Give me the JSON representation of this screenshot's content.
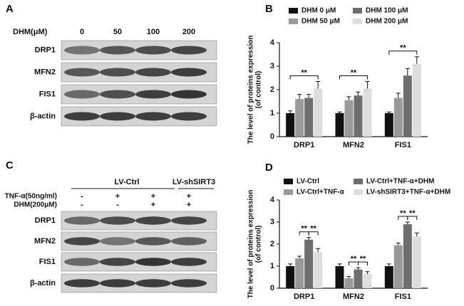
{
  "panels": {
    "A": {
      "letter": "A",
      "header": "DHM(μM)",
      "lanes": [
        "0",
        "50",
        "100",
        "200"
      ],
      "rows": [
        "DRP1",
        "MFN2",
        "FIS1",
        "β-actin"
      ]
    },
    "C": {
      "letter": "C",
      "groups": [
        "LV-Ctrl",
        "LV-shSIRT3"
      ],
      "conditions": [
        {
          "label": "TNF-α(50ng/ml)",
          "signs": [
            "-",
            "+",
            "+",
            "+"
          ]
        },
        {
          "label": "DHM(200μM)",
          "signs": [
            "-",
            "-",
            "+",
            "+"
          ]
        }
      ],
      "rows": [
        "DRP1",
        "MFN2",
        "FIS1",
        "β-actin"
      ]
    }
  },
  "chart_data": [
    {
      "type": "bar",
      "letter": "B",
      "ylabel": [
        "The level of proteins expression",
        "(of control)"
      ],
      "categories": [
        "DRP1",
        "MFN2",
        "FIS1"
      ],
      "ylim": [
        0,
        4
      ],
      "yticks": [
        0,
        1,
        2,
        3,
        4
      ],
      "series": [
        {
          "name": "DHM 0 μM",
          "color": "#111111",
          "values": [
            1.0,
            1.0,
            1.0
          ],
          "errors": [
            0.1,
            0.05,
            0.05
          ]
        },
        {
          "name": "DHM 50 μM",
          "color": "#999999",
          "values": [
            1.6,
            1.55,
            1.65
          ],
          "errors": [
            0.2,
            0.15,
            0.2
          ]
        },
        {
          "name": "DHM 100 μM",
          "color": "#6e6e6e",
          "values": [
            1.65,
            1.75,
            2.6
          ],
          "errors": [
            0.15,
            0.15,
            0.3
          ]
        },
        {
          "name": "DHM 200 μM",
          "color": "#dddddd",
          "values": [
            2.05,
            2.05,
            3.1
          ],
          "errors": [
            0.3,
            0.3,
            0.3
          ]
        }
      ],
      "annotations": [
        {
          "text": "**",
          "category": "DRP1",
          "from": "DHM 0 μM",
          "to": "DHM 200 μM"
        },
        {
          "text": "**",
          "category": "MFN2",
          "from": "DHM 0 μM",
          "to": "DHM 200 μM"
        },
        {
          "text": "**",
          "category": "FIS1",
          "from": "DHM 0 μM",
          "to": "DHM 200 μM"
        }
      ]
    },
    {
      "type": "bar",
      "letter": "D",
      "ylabel": [
        "The level of proteins expression",
        "(of control)"
      ],
      "categories": [
        "DRP1",
        "MFN2",
        "FIS1"
      ],
      "ylim": [
        0,
        4
      ],
      "yticks": [
        0,
        1,
        2,
        3,
        4
      ],
      "series": [
        {
          "name": "LV-Ctrl",
          "color": "#111111",
          "values": [
            1.0,
            1.0,
            1.0
          ],
          "errors": [
            0.1,
            0.1,
            0.1
          ]
        },
        {
          "name": "LV-Ctrl+TNF-α",
          "color": "#999999",
          "values": [
            1.35,
            0.45,
            1.95
          ],
          "errors": [
            0.1,
            0.08,
            0.1
          ]
        },
        {
          "name": "LV-Ctrl+TNF-α+DHM",
          "color": "#6e6e6e",
          "values": [
            2.2,
            0.85,
            2.9
          ],
          "errors": [
            0.1,
            0.08,
            0.1
          ]
        },
        {
          "name": "LV-shSIRT3+TNF-α+DHM",
          "color": "#dddddd",
          "values": [
            1.65,
            0.65,
            2.35
          ],
          "errors": [
            0.15,
            0.1,
            0.15
          ]
        }
      ],
      "annotations": [
        {
          "text": "**",
          "category": "DRP1",
          "from": "LV-Ctrl+TNF-α",
          "to": "LV-Ctrl+TNF-α+DHM"
        },
        {
          "text": "**",
          "category": "DRP1",
          "from": "LV-Ctrl+TNF-α+DHM",
          "to": "LV-shSIRT3+TNF-α+DHM"
        },
        {
          "text": "**",
          "category": "MFN2",
          "from": "LV-Ctrl+TNF-α",
          "to": "LV-Ctrl+TNF-α+DHM"
        },
        {
          "text": "**",
          "category": "MFN2",
          "from": "LV-Ctrl+TNF-α+DHM",
          "to": "LV-shSIRT3+TNF-α+DHM"
        },
        {
          "text": "**",
          "category": "FIS1",
          "from": "LV-Ctrl+TNF-α",
          "to": "LV-Ctrl+TNF-α+DHM"
        },
        {
          "text": "**",
          "category": "FIS1",
          "from": "LV-Ctrl+TNF-α+DHM",
          "to": "LV-shSIRT3+TNF-α+DHM"
        }
      ]
    }
  ]
}
